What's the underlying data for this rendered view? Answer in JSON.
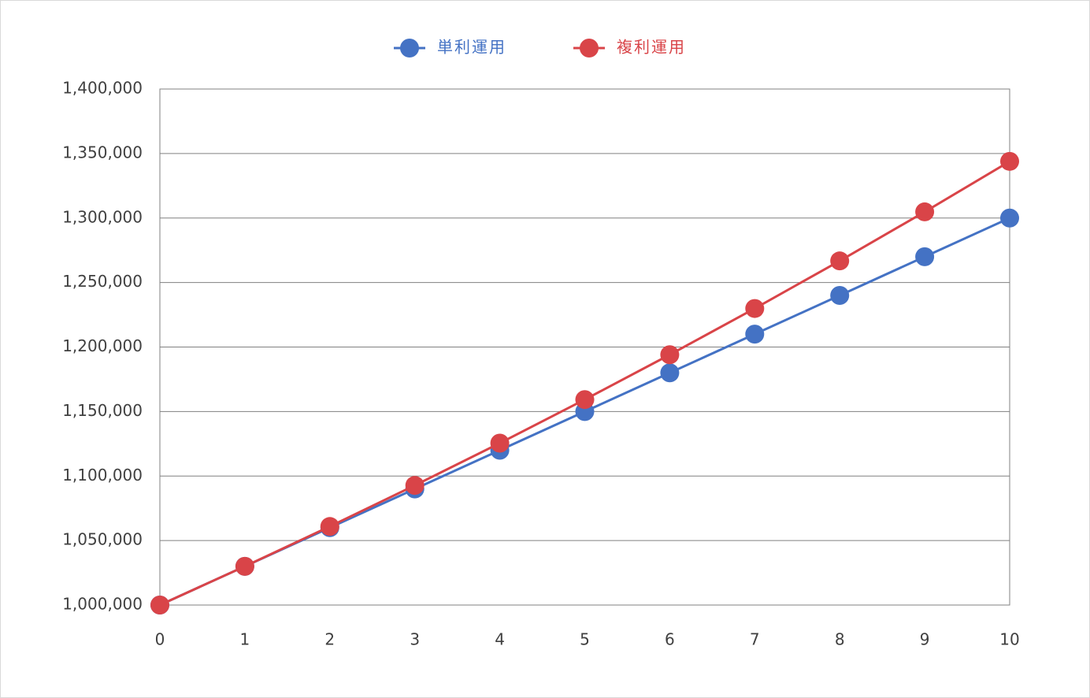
{
  "chart_data": {
    "type": "line",
    "x": [
      0,
      1,
      2,
      3,
      4,
      5,
      6,
      7,
      8,
      9,
      10
    ],
    "series": [
      {
        "name": "単利運用",
        "color": "#4472c4",
        "values": [
          1000000,
          1030000,
          1060000,
          1090000,
          1120000,
          1150000,
          1180000,
          1210000,
          1240000,
          1270000,
          1300000
        ]
      },
      {
        "name": "複利運用",
        "color": "#d94448",
        "values": [
          1000000,
          1030000,
          1060900,
          1092727,
          1125509,
          1159274,
          1194052,
          1229874,
          1266770,
          1304773,
          1343916
        ]
      }
    ],
    "xlim": [
      0,
      10
    ],
    "xticks": [
      0,
      1,
      2,
      3,
      4,
      5,
      6,
      7,
      8,
      9,
      10
    ],
    "ylim": [
      1000000,
      1400000
    ],
    "yticks": [
      {
        "value": 1000000,
        "label": "1,000,000"
      },
      {
        "value": 1050000,
        "label": "1,050,000"
      },
      {
        "value": 1100000,
        "label": "1,100,000"
      },
      {
        "value": 1150000,
        "label": "1,150,000"
      },
      {
        "value": 1200000,
        "label": "1,200,000"
      },
      {
        "value": 1250000,
        "label": "1,250,000"
      },
      {
        "value": 1300000,
        "label": "1,300,000"
      },
      {
        "value": 1350000,
        "label": "1,350,000"
      },
      {
        "value": 1400000,
        "label": "1,400,000"
      }
    ],
    "grid": true,
    "legend": "top"
  }
}
